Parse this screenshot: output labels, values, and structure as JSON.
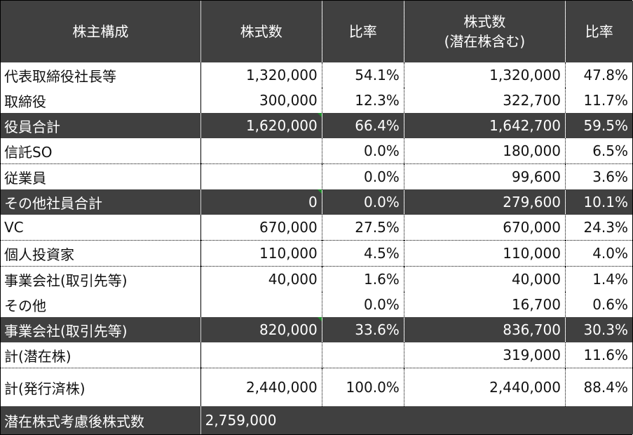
{
  "header": {
    "col_category": "株主構成",
    "col_shares": "株式数",
    "col_ratio": "比率",
    "col_shares_potential_line1": "株式数",
    "col_shares_potential_line2": "(潜在株含む)",
    "col_ratio2": "比率"
  },
  "rows": [
    {
      "label": "代表取締役社長等",
      "shares": "1,320,000",
      "ratio": "54.1%",
      "shares_potential": "1,320,000",
      "ratio2": "47.8%"
    },
    {
      "label": "取締役",
      "shares": "300,000",
      "ratio": "12.3%",
      "shares_potential": "322,700",
      "ratio2": "11.7%"
    },
    {
      "label": "役員合計",
      "shares": "1,620,000",
      "ratio": "66.4%",
      "shares_potential": "1,642,700",
      "ratio2": "59.5%"
    },
    {
      "label": "信託SO",
      "shares": "",
      "ratio": "0.0%",
      "shares_potential": "180,000",
      "ratio2": "6.5%"
    },
    {
      "label": "従業員",
      "shares": "",
      "ratio": "0.0%",
      "shares_potential": "99,600",
      "ratio2": "3.6%"
    },
    {
      "label": "その他社員合計",
      "shares": "0",
      "ratio": "0.0%",
      "shares_potential": "279,600",
      "ratio2": "10.1%"
    },
    {
      "label": "VC",
      "shares": "670,000",
      "ratio": "27.5%",
      "shares_potential": "670,000",
      "ratio2": "24.3%"
    },
    {
      "label": "個人投資家",
      "shares": "110,000",
      "ratio": "4.5%",
      "shares_potential": "110,000",
      "ratio2": "4.0%"
    },
    {
      "label": "事業会社(取引先等)",
      "shares": "40,000",
      "ratio": "1.6%",
      "shares_potential": "40,000",
      "ratio2": "1.4%"
    },
    {
      "label": "その他",
      "shares": "",
      "ratio": "0.0%",
      "shares_potential": "16,700",
      "ratio2": "0.6%"
    },
    {
      "label": "事業会社(取引先等)",
      "shares": "820,000",
      "ratio": "33.6%",
      "shares_potential": "836,700",
      "ratio2": "30.3%"
    },
    {
      "label": "計(潜在株)",
      "shares": "",
      "ratio": "",
      "shares_potential": "319,000",
      "ratio2": "11.6%"
    },
    {
      "label": "計(発行済株)",
      "shares": "2,440,000",
      "ratio": "100.0%",
      "shares_potential": "2,440,000",
      "ratio2": "88.4%"
    }
  ],
  "final": {
    "label": "潜在株式考慮後株式数",
    "shares": "2,759,000"
  },
  "colors": {
    "header_bg": "#404040",
    "indicator_green": "#1e8f2a"
  }
}
